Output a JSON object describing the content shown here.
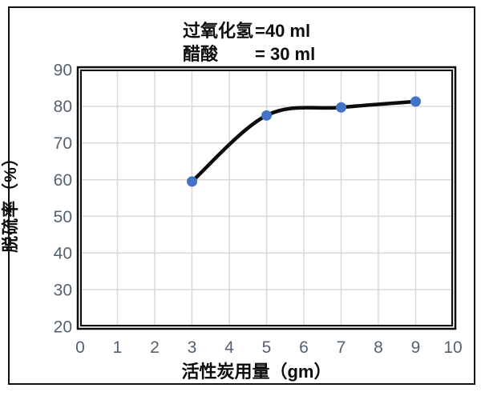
{
  "figure": {
    "title": {
      "lines": [
        {
          "label": "过氧化氢",
          "value": "=40 ml"
        },
        {
          "label": "醋酸",
          "value": "= 30 ml"
        }
      ]
    }
  },
  "chart_data": {
    "type": "line",
    "series": [
      {
        "name": "脱硫率",
        "x": [
          3,
          5,
          7,
          9
        ],
        "y": [
          59.5,
          77.5,
          79.7,
          81.3
        ]
      }
    ],
    "title": "过氧化氢 =40 ml / 醋酸 = 30 ml",
    "xlabel": "活性炭用量（gm）",
    "ylabel": "脱硫率（%）",
    "xlim": [
      0,
      10
    ],
    "ylim": [
      20,
      90
    ],
    "x_ticks": [
      0,
      1,
      2,
      3,
      4,
      5,
      6,
      7,
      8,
      9,
      10
    ],
    "y_ticks": [
      90,
      80,
      70,
      60,
      50,
      40,
      30,
      20
    ],
    "grid": true,
    "smooth_line": true,
    "legend_position": "none",
    "colors": {
      "marker": "#4472C4",
      "line": "#0d0d0d",
      "gridline": "#d9d9d9",
      "tick_label": "#546170",
      "plot_border": "#0d0d0d"
    }
  }
}
